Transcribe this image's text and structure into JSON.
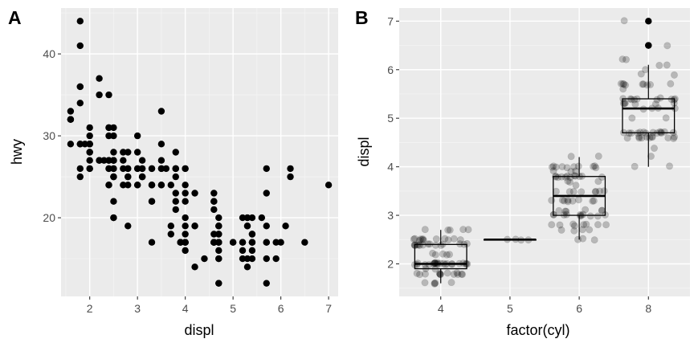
{
  "chart_data": [
    {
      "tag": "A",
      "type": "scatter",
      "xlabel": "displ",
      "ylabel": "hwy",
      "xlim": [
        1.4,
        7.2
      ],
      "ylim": [
        10.4,
        45.6
      ],
      "xticks": [
        2,
        3,
        4,
        5,
        6,
        7
      ],
      "yticks": [
        20,
        30,
        40
      ],
      "point_color": "#000000",
      "points": [
        [
          1.8,
          29
        ],
        [
          1.8,
          29
        ],
        [
          2.0,
          31
        ],
        [
          2.0,
          30
        ],
        [
          2.8,
          26
        ],
        [
          2.8,
          26
        ],
        [
          3.1,
          27
        ],
        [
          1.8,
          26
        ],
        [
          1.8,
          25
        ],
        [
          2.0,
          28
        ],
        [
          2.0,
          27
        ],
        [
          2.8,
          25
        ],
        [
          2.8,
          25
        ],
        [
          3.1,
          25
        ],
        [
          3.1,
          25
        ],
        [
          2.8,
          24
        ],
        [
          3.1,
          25
        ],
        [
          4.2,
          23
        ],
        [
          5.3,
          20
        ],
        [
          5.3,
          15
        ],
        [
          5.3,
          20
        ],
        [
          5.7,
          17
        ],
        [
          6.0,
          17
        ],
        [
          5.7,
          26
        ],
        [
          5.7,
          23
        ],
        [
          6.2,
          26
        ],
        [
          6.2,
          25
        ],
        [
          7.0,
          24
        ],
        [
          5.3,
          19
        ],
        [
          5.3,
          14
        ],
        [
          5.7,
          15
        ],
        [
          6.5,
          17
        ],
        [
          2.4,
          27
        ],
        [
          2.4,
          30
        ],
        [
          3.1,
          26
        ],
        [
          3.5,
          29
        ],
        [
          3.6,
          26
        ],
        [
          2.4,
          24
        ],
        [
          3.0,
          24
        ],
        [
          3.3,
          22
        ],
        [
          3.3,
          22
        ],
        [
          3.3,
          24
        ],
        [
          3.3,
          24
        ],
        [
          3.3,
          17
        ],
        [
          3.8,
          22
        ],
        [
          3.8,
          21
        ],
        [
          3.8,
          23
        ],
        [
          4.0,
          23
        ],
        [
          3.7,
          19
        ],
        [
          3.7,
          18
        ],
        [
          3.9,
          17
        ],
        [
          3.9,
          17
        ],
        [
          4.7,
          19
        ],
        [
          4.7,
          19
        ],
        [
          4.7,
          12
        ],
        [
          4.7,
          17
        ],
        [
          5.2,
          17
        ],
        [
          5.2,
          17
        ],
        [
          5.7,
          17
        ],
        [
          5.9,
          17
        ],
        [
          4.7,
          12
        ],
        [
          4.7,
          17
        ],
        [
          4.7,
          16
        ],
        [
          4.7,
          18
        ],
        [
          4.7,
          15
        ],
        [
          5.2,
          16
        ],
        [
          5.2,
          15
        ],
        [
          3.9,
          17
        ],
        [
          4.7,
          17
        ],
        [
          4.7,
          15
        ],
        [
          4.7,
          18
        ],
        [
          5.2,
          20
        ],
        [
          5.7,
          19
        ],
        [
          5.9,
          15
        ],
        [
          4.6,
          17
        ],
        [
          5.4,
          17
        ],
        [
          5.4,
          16
        ],
        [
          4.0,
          17
        ],
        [
          4.0,
          19
        ],
        [
          4.0,
          17
        ],
        [
          4.0,
          17
        ],
        [
          4.6,
          17
        ],
        [
          5.0,
          17
        ],
        [
          4.2,
          19
        ],
        [
          4.2,
          19
        ],
        [
          4.6,
          17
        ],
        [
          4.6,
          17
        ],
        [
          4.6,
          17
        ],
        [
          5.4,
          18
        ],
        [
          5.4,
          17
        ],
        [
          3.8,
          26
        ],
        [
          3.8,
          25
        ],
        [
          4.0,
          26
        ],
        [
          4.0,
          24
        ],
        [
          4.6,
          21
        ],
        [
          4.6,
          22
        ],
        [
          4.6,
          23
        ],
        [
          4.6,
          22
        ],
        [
          5.4,
          20
        ],
        [
          1.6,
          33
        ],
        [
          1.6,
          32
        ],
        [
          1.6,
          32
        ],
        [
          1.6,
          29
        ],
        [
          1.6,
          32
        ],
        [
          1.8,
          34
        ],
        [
          1.8,
          36
        ],
        [
          1.8,
          36
        ],
        [
          2.0,
          29
        ],
        [
          2.4,
          26
        ],
        [
          2.4,
          27
        ],
        [
          2.5,
          30
        ],
        [
          2.5,
          31
        ],
        [
          3.3,
          26
        ],
        [
          2.0,
          26
        ],
        [
          2.0,
          28
        ],
        [
          2.0,
          26
        ],
        [
          2.0,
          29
        ],
        [
          2.7,
          28
        ],
        [
          2.7,
          27
        ],
        [
          2.7,
          24
        ],
        [
          3.0,
          24
        ],
        [
          3.7,
          24
        ],
        [
          4.0,
          22
        ],
        [
          4.7,
          19
        ],
        [
          4.7,
          20
        ],
        [
          4.7,
          17
        ],
        [
          5.7,
          12
        ],
        [
          6.1,
          19
        ],
        [
          4.0,
          18
        ],
        [
          4.2,
          14
        ],
        [
          4.4,
          15
        ],
        [
          4.6,
          18
        ],
        [
          5.4,
          18
        ],
        [
          5.4,
          15
        ],
        [
          5.4,
          17
        ],
        [
          4.0,
          16
        ],
        [
          4.0,
          17
        ],
        [
          4.6,
          17
        ],
        [
          5.0,
          17
        ],
        [
          2.4,
          26
        ],
        [
          2.4,
          24
        ],
        [
          2.5,
          26
        ],
        [
          2.5,
          22
        ],
        [
          3.5,
          24
        ],
        [
          3.5,
          24
        ],
        [
          3.0,
          26
        ],
        [
          3.0,
          28
        ],
        [
          3.5,
          26
        ],
        [
          3.3,
          24
        ],
        [
          3.3,
          26
        ],
        [
          4.0,
          26
        ],
        [
          5.6,
          20
        ],
        [
          3.1,
          26
        ],
        [
          3.8,
          26
        ],
        [
          3.8,
          28
        ],
        [
          3.8,
          26
        ],
        [
          5.3,
          19
        ],
        [
          2.5,
          25
        ],
        [
          2.5,
          27
        ],
        [
          2.5,
          25
        ],
        [
          2.5,
          27
        ],
        [
          2.5,
          20
        ],
        [
          2.5,
          20
        ],
        [
          2.2,
          27
        ],
        [
          2.2,
          27
        ],
        [
          2.5,
          27
        ],
        [
          2.5,
          27
        ],
        [
          2.5,
          25
        ],
        [
          2.5,
          26
        ],
        [
          2.5,
          28
        ],
        [
          2.0,
          29
        ],
        [
          2.3,
          27
        ],
        [
          2.4,
          31
        ],
        [
          2.4,
          31
        ],
        [
          2.7,
          26
        ],
        [
          3.0,
          26
        ],
        [
          3.5,
          27
        ],
        [
          3.0,
          30
        ],
        [
          3.5,
          33
        ],
        [
          2.2,
          35
        ],
        [
          2.2,
          37
        ],
        [
          2.4,
          35
        ],
        [
          1.8,
          44
        ],
        [
          1.8,
          41
        ],
        [
          3.5,
          26
        ],
        [
          2.8,
          19
        ],
        [
          4.0,
          20
        ],
        [
          2.8,
          28
        ],
        [
          2.0,
          29
        ],
        [
          1.9,
          29
        ]
      ]
    },
    {
      "tag": "B",
      "type": "boxplot-jitter",
      "xlabel": "factor(cyl)",
      "ylabel": "displ",
      "categories": [
        "4",
        "5",
        "6",
        "8"
      ],
      "ylim": [
        1.33,
        7.27
      ],
      "yticks": [
        2,
        3,
        4,
        5,
        6,
        7
      ],
      "box_color": "#000000",
      "point_color": "#000000",
      "point_alpha": 0.22,
      "boxes": [
        {
          "category": "4",
          "min": 1.6,
          "q1": 1.9,
          "median": 2.0,
          "q3": 2.4,
          "max": 2.7,
          "outliers": []
        },
        {
          "category": "5",
          "min": 2.5,
          "q1": 2.5,
          "median": 2.5,
          "q3": 2.5,
          "max": 2.5,
          "outliers": []
        },
        {
          "category": "6",
          "min": 2.5,
          "q1": 3.0,
          "median": 3.4,
          "q3": 3.8,
          "max": 4.2,
          "outliers": []
        },
        {
          "category": "8",
          "min": 4.0,
          "q1": 4.7,
          "median": 5.2,
          "q3": 5.4,
          "max": 6.1,
          "outliers": [
            6.5,
            6.5,
            7.0
          ]
        }
      ],
      "jitter": [
        {
          "category": "4",
          "values": [
            1.8,
            1.8,
            2.0,
            2.0,
            1.8,
            1.8,
            2.0,
            2.0,
            2.4,
            2.4,
            2.4,
            2.5,
            2.5,
            2.0,
            2.0,
            2.0,
            2.0,
            2.7,
            2.7,
            2.7,
            1.6,
            1.6,
            1.6,
            1.6,
            1.6,
            1.8,
            1.8,
            1.8,
            2.0,
            2.4,
            2.4,
            2.5,
            2.5,
            2.0,
            2.0,
            2.4,
            2.4,
            2.2,
            2.2,
            2.4,
            2.4,
            2.4,
            2.2,
            2.2,
            2.4,
            2.4,
            2.0,
            1.8,
            1.8,
            2.0,
            1.9,
            2.5,
            2.5,
            2.5,
            2.5,
            2.5,
            2.2,
            2.0,
            2.0,
            1.9,
            2.0,
            2.7,
            2.7,
            2.4,
            2.5,
            2.5,
            2.0,
            2.0,
            1.8,
            1.8,
            2.0,
            2.0,
            2.5,
            2.4,
            2.0,
            2.0,
            1.8,
            1.8,
            2.0,
            2.0,
            2.4
          ]
        },
        {
          "category": "5",
          "values": [
            2.5,
            2.5,
            2.5,
            2.5
          ]
        },
        {
          "category": "6",
          "values": [
            2.8,
            2.8,
            3.1,
            2.8,
            2.8,
            3.1,
            3.1,
            2.8,
            3.1,
            3.8,
            3.8,
            3.8,
            4.0,
            3.7,
            3.7,
            3.9,
            3.9,
            3.9,
            4.0,
            4.0,
            4.0,
            4.2,
            4.2,
            3.8,
            3.8,
            4.0,
            4.0,
            3.3,
            2.7,
            2.7,
            3.0,
            3.7,
            4.0,
            4.0,
            3.5,
            3.5,
            3.0,
            3.0,
            3.5,
            3.3,
            3.3,
            4.0,
            3.1,
            3.8,
            3.8,
            3.8,
            2.5,
            2.5,
            2.7,
            3.0,
            3.5,
            3.0,
            3.5,
            2.8,
            2.8,
            3.3,
            3.3,
            3.3,
            3.3,
            3.3,
            3.8,
            3.8,
            4.0,
            3.0,
            3.0,
            3.6,
            3.5,
            2.7,
            3.0,
            3.0,
            3.3,
            3.8,
            3.8,
            3.5,
            3.5,
            3.0,
            3.0,
            2.5,
            2.8,
            3.1
          ]
        },
        {
          "category": "8",
          "values": [
            4.2,
            5.3,
            5.3,
            5.3,
            5.7,
            6.0,
            5.7,
            5.7,
            6.2,
            6.2,
            7.0,
            5.3,
            5.3,
            5.7,
            6.5,
            4.7,
            4.7,
            4.7,
            5.2,
            5.2,
            5.7,
            5.9,
            4.7,
            4.7,
            4.7,
            4.7,
            4.7,
            4.7,
            5.2,
            5.2,
            5.7,
            5.9,
            4.6,
            5.4,
            5.4,
            4.0,
            4.0,
            4.6,
            5.0,
            4.6,
            4.6,
            4.6,
            5.4,
            5.4,
            4.6,
            4.6,
            4.6,
            4.6,
            5.4,
            4.7,
            4.7,
            4.7,
            5.7,
            6.1,
            4.4,
            4.6,
            5.4,
            5.4,
            5.4,
            4.6,
            5.0,
            5.6,
            5.4,
            4.7,
            5.7,
            6.1,
            5.4,
            5.3,
            4.7,
            5.7
          ]
        }
      ]
    }
  ]
}
